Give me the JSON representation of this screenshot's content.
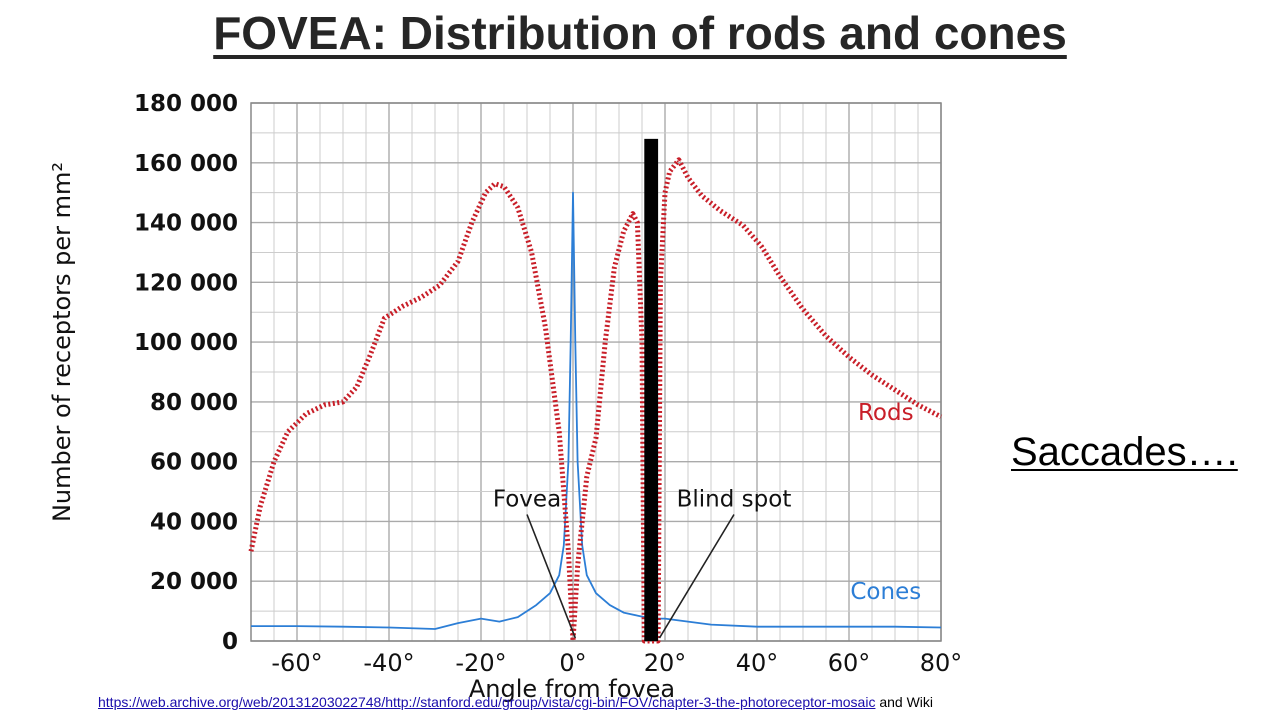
{
  "slide": {
    "title": "FOVEA:  Distribution of rods and cones",
    "side_note": "Saccades….",
    "credit_link": "https://web.archive.org/web/20131203022748/http://stanford.edu/group/vista/cgi-bin/FOV/chapter-3-the-photoreceptor-mosaic",
    "credit_suffix": "and Wiki"
  },
  "colors": {
    "rods": "#c81e28",
    "cones": "#2c7ed6",
    "blind_spot_bar": "#000000",
    "grid": "#cccccc",
    "title": "#262626"
  },
  "chart_data": {
    "type": "line",
    "xlabel": "Angle from fovea",
    "ylabel": "Number of receptors per mm²",
    "xlim": [
      -70,
      80
    ],
    "ylim": [
      0,
      180000
    ],
    "x_ticks": [
      "-60°",
      "-40°",
      "-20°",
      "0°",
      "20°",
      "40°",
      "60°",
      "80°"
    ],
    "y_ticks": [
      "0",
      "20 000",
      "40 000",
      "60 000",
      "80 000",
      "100 000",
      "120 000",
      "140 000",
      "160 000",
      "180 000"
    ],
    "grid": true,
    "series": [
      {
        "name": "Rods",
        "style": "dotted",
        "points": [
          [
            -70,
            30000
          ],
          [
            -68,
            45000
          ],
          [
            -65,
            60000
          ],
          [
            -62,
            70000
          ],
          [
            -58,
            76000
          ],
          [
            -54,
            79000
          ],
          [
            -50,
            80000
          ],
          [
            -47,
            85000
          ],
          [
            -44,
            96000
          ],
          [
            -41,
            108000
          ],
          [
            -37,
            112000
          ],
          [
            -33,
            115000
          ],
          [
            -29,
            119000
          ],
          [
            -25,
            127000
          ],
          [
            -22,
            140000
          ],
          [
            -19,
            150000
          ],
          [
            -17,
            153000
          ],
          [
            -15,
            152000
          ],
          [
            -12,
            145000
          ],
          [
            -9,
            130000
          ],
          [
            -6,
            105000
          ],
          [
            -3,
            70000
          ],
          [
            -1,
            30000
          ],
          [
            0,
            0
          ],
          [
            1,
            25000
          ],
          [
            3,
            55000
          ],
          [
            5,
            68000
          ],
          [
            7,
            100000
          ],
          [
            9,
            125000
          ],
          [
            11,
            137000
          ],
          [
            13,
            143000
          ],
          [
            14,
            140000
          ],
          [
            15,
            100000
          ],
          [
            15.5,
            0
          ],
          [
            18.5,
            0
          ],
          [
            19,
            120000
          ],
          [
            20,
            150000
          ],
          [
            21,
            157000
          ],
          [
            23,
            161000
          ],
          [
            25,
            155000
          ],
          [
            28,
            149000
          ],
          [
            32,
            144000
          ],
          [
            37,
            139000
          ],
          [
            41,
            132000
          ],
          [
            45,
            122000
          ],
          [
            50,
            111000
          ],
          [
            55,
            102000
          ],
          [
            60,
            95000
          ],
          [
            65,
            89000
          ],
          [
            70,
            84000
          ],
          [
            75,
            79000
          ],
          [
            80,
            75000
          ]
        ]
      },
      {
        "name": "Cones",
        "style": "solid",
        "points": [
          [
            -70,
            5000
          ],
          [
            -60,
            5000
          ],
          [
            -50,
            4800
          ],
          [
            -40,
            4500
          ],
          [
            -30,
            4000
          ],
          [
            -25,
            6000
          ],
          [
            -20,
            7500
          ],
          [
            -16,
            6500
          ],
          [
            -12,
            8000
          ],
          [
            -8,
            12000
          ],
          [
            -5,
            16000
          ],
          [
            -3,
            22000
          ],
          [
            -2,
            32000
          ],
          [
            -1,
            60000
          ],
          [
            -0.5,
            100000
          ],
          [
            0,
            150000
          ],
          [
            0.5,
            100000
          ],
          [
            1,
            60000
          ],
          [
            2,
            32000
          ],
          [
            3,
            22000
          ],
          [
            5,
            16000
          ],
          [
            8,
            12000
          ],
          [
            11,
            9500
          ],
          [
            14,
            8500
          ],
          [
            15.5,
            8000
          ],
          [
            18.5,
            7500
          ],
          [
            20,
            7500
          ],
          [
            25,
            6500
          ],
          [
            30,
            5500
          ],
          [
            40,
            4800
          ],
          [
            50,
            4800
          ],
          [
            60,
            4800
          ],
          [
            70,
            4800
          ],
          [
            80,
            4500
          ]
        ]
      }
    ],
    "blind_spot_bar": {
      "x_range": [
        15.5,
        18.5
      ],
      "top": 168000
    },
    "annotations": [
      {
        "text": "Fovea",
        "label_at": [
          -10,
          45000
        ],
        "arrow_to": [
          0.5,
          1000
        ]
      },
      {
        "text": "Blind spot",
        "label_at": [
          35,
          45000
        ],
        "arrow_to": [
          18.8,
          1000
        ]
      }
    ],
    "legend": [
      {
        "series": "Rods",
        "placement": "right",
        "label_at": [
          68,
          74000
        ]
      },
      {
        "series": "Cones",
        "placement": "bottom-right",
        "label_at": [
          68,
          14000
        ]
      }
    ]
  }
}
